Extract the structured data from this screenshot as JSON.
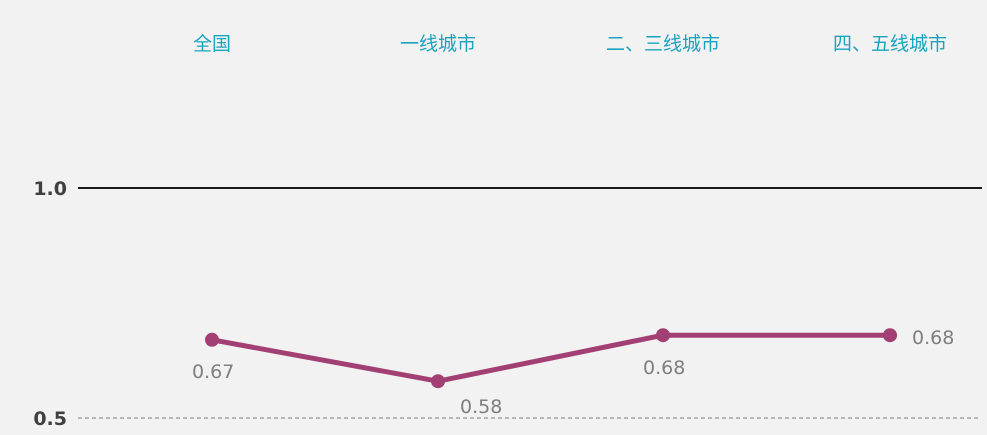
{
  "chart_data": {
    "type": "line",
    "categories": [
      "全国",
      "一线城市",
      "二、三线城市",
      "四、五线城市"
    ],
    "series": [
      {
        "values": [
          0.67,
          0.58,
          0.68,
          0.68
        ]
      }
    ],
    "data_labels": [
      "0.67",
      "0.58",
      "0.68",
      "0.68"
    ],
    "y_ticks": [
      "1.0",
      "0.5"
    ],
    "ylim": [
      0.5,
      1.0
    ],
    "colors": {
      "line": "#a23f73",
      "category_text": "#1ba3bf",
      "axis_major": "#1a1a1a",
      "axis_minor": "#7f7f7f"
    },
    "legend": "none",
    "grid": false
  }
}
